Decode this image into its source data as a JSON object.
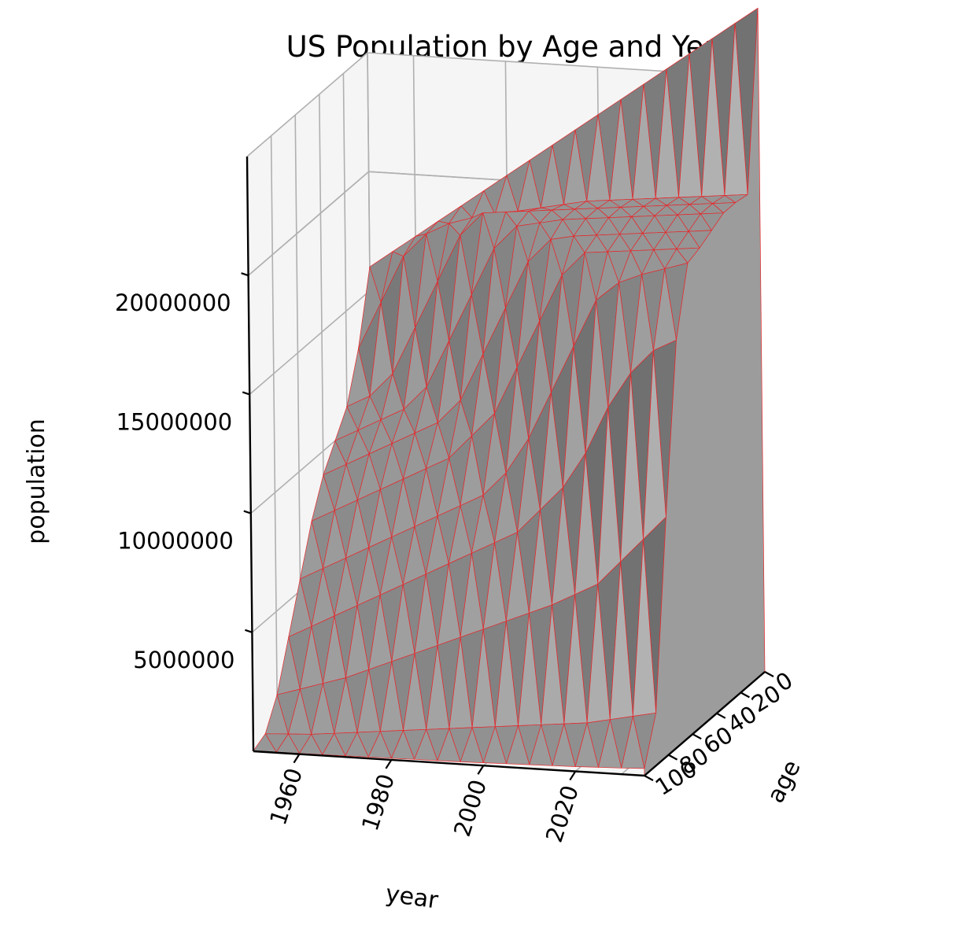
{
  "chart_data": {
    "type": "surface",
    "title": "US Population by Age and Year",
    "xlabel": "year",
    "ylabel": "age",
    "zlabel": "population",
    "x_ticks": [
      "1960",
      "1980",
      "2000",
      "2020"
    ],
    "y_ticks": [
      "0",
      "20",
      "40",
      "60",
      "80",
      "100"
    ],
    "z_ticks": [
      "5000000",
      "10000000",
      "15000000",
      "20000000"
    ],
    "xlim": [
      1950,
      2035
    ],
    "ylim": [
      0,
      100
    ],
    "zlim": [
      0,
      25000000
    ],
    "grid": true,
    "colors": {
      "surface": "#9a9a9a",
      "edge": "#e8262a",
      "pane": "#f5f5f5",
      "grid": "#b0b0b0"
    },
    "years": [
      1950,
      1955,
      1960,
      1965,
      1970,
      1975,
      1980,
      1985,
      1990,
      1995,
      2000,
      2005,
      2010,
      2015,
      2020,
      2025,
      2030,
      2035
    ],
    "ages": [
      0,
      10,
      20,
      30,
      40,
      50,
      60,
      70,
      80,
      90,
      100
    ],
    "population": [
      [
        16000000,
        16700000,
        17400000,
        18100000,
        18800000,
        19500000,
        20200000,
        20900000,
        21600000,
        22300000,
        23000000,
        23700000,
        24400000,
        25100000,
        25800000,
        26500000,
        27200000,
        27900000
      ],
      [
        13000000,
        15000000,
        17000000,
        18000000,
        18500000,
        18800000,
        19000000,
        19200000,
        19400000,
        19600000,
        19800000,
        19900000,
        20000000,
        20100000,
        20200000,
        20300000,
        20400000,
        20500000
      ],
      [
        11000000,
        11500000,
        12500000,
        14500000,
        16500000,
        18500000,
        19500000,
        19600000,
        19700000,
        19800000,
        19900000,
        20000000,
        20100000,
        20200000,
        20300000,
        20400000,
        20500000,
        20600000
      ],
      [
        10000000,
        10500000,
        11000000,
        11500000,
        12500000,
        14500000,
        16500000,
        18500000,
        19500000,
        19700000,
        19900000,
        20000000,
        20100000,
        20200000,
        20300000,
        20400000,
        20500000,
        20600000
      ],
      [
        9000000,
        9500000,
        10000000,
        10500000,
        11000000,
        11500000,
        12500000,
        14500000,
        16500000,
        18500000,
        19500000,
        19700000,
        19800000,
        19900000,
        20000000,
        20100000,
        20200000,
        20300000
      ],
      [
        7500000,
        8000000,
        8500000,
        9000000,
        9500000,
        10000000,
        10500000,
        11500000,
        12500000,
        14500000,
        16500000,
        18500000,
        19500000,
        19600000,
        19700000,
        19800000,
        19900000,
        20000000
      ],
      [
        5500000,
        6000000,
        6500000,
        7000000,
        7500000,
        8000000,
        8500000,
        9000000,
        9500000,
        10500000,
        12000000,
        14000000,
        16000000,
        18000000,
        18800000,
        19200000,
        19500000,
        19800000
      ],
      [
        3500000,
        4000000,
        4500000,
        5000000,
        5500000,
        6000000,
        6500000,
        7000000,
        7500000,
        8000000,
        8500000,
        9500000,
        10500000,
        12000000,
        14000000,
        15500000,
        16500000,
        17000000
      ],
      [
        1500000,
        1800000,
        2100000,
        2400000,
        2800000,
        3200000,
        3600000,
        4000000,
        4400000,
        4800000,
        5200000,
        5600000,
        6000000,
        6500000,
        7000000,
        8000000,
        9000000,
        10000000
      ],
      [
        300000,
        350000,
        400000,
        500000,
        600000,
        700000,
        800000,
        900000,
        1000000,
        1100000,
        1200000,
        1300000,
        1400000,
        1500000,
        1600000,
        1800000,
        2000000,
        2200000
      ],
      [
        20000,
        25000,
        30000,
        40000,
        50000,
        60000,
        70000,
        80000,
        90000,
        100000,
        120000,
        140000,
        160000,
        180000,
        200000,
        230000,
        260000,
        300000
      ]
    ]
  }
}
